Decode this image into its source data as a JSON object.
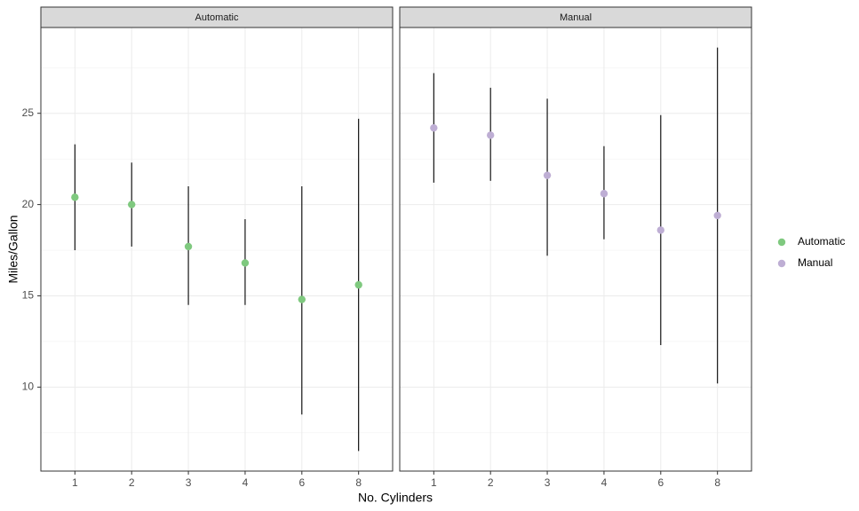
{
  "chart_data": {
    "type": "errorbar",
    "xlabel": "No. Cylinders",
    "ylabel": "Miles/Gallon",
    "categories": [
      "1",
      "2",
      "3",
      "4",
      "6",
      "8"
    ],
    "ylim": [
      5.4,
      29.7
    ],
    "yticks": [
      10,
      15,
      20,
      25
    ],
    "grid": true,
    "legend": "right",
    "series": [
      {
        "name": "Automatic",
        "color": "#7fc97f",
        "values": [
          20.4,
          20.0,
          17.7,
          16.8,
          14.8,
          15.6
        ],
        "low": [
          17.5,
          17.7,
          14.5,
          14.5,
          8.5,
          6.5
        ],
        "high": [
          23.3,
          22.3,
          21.0,
          19.2,
          21.0,
          24.7
        ]
      },
      {
        "name": "Manual",
        "color": "#beaed4",
        "values": [
          24.2,
          23.8,
          21.6,
          20.6,
          18.6,
          19.4
        ],
        "low": [
          21.2,
          21.3,
          17.2,
          18.1,
          12.3,
          10.2
        ],
        "high": [
          27.2,
          26.4,
          25.8,
          23.2,
          24.9,
          28.6
        ]
      }
    ]
  }
}
